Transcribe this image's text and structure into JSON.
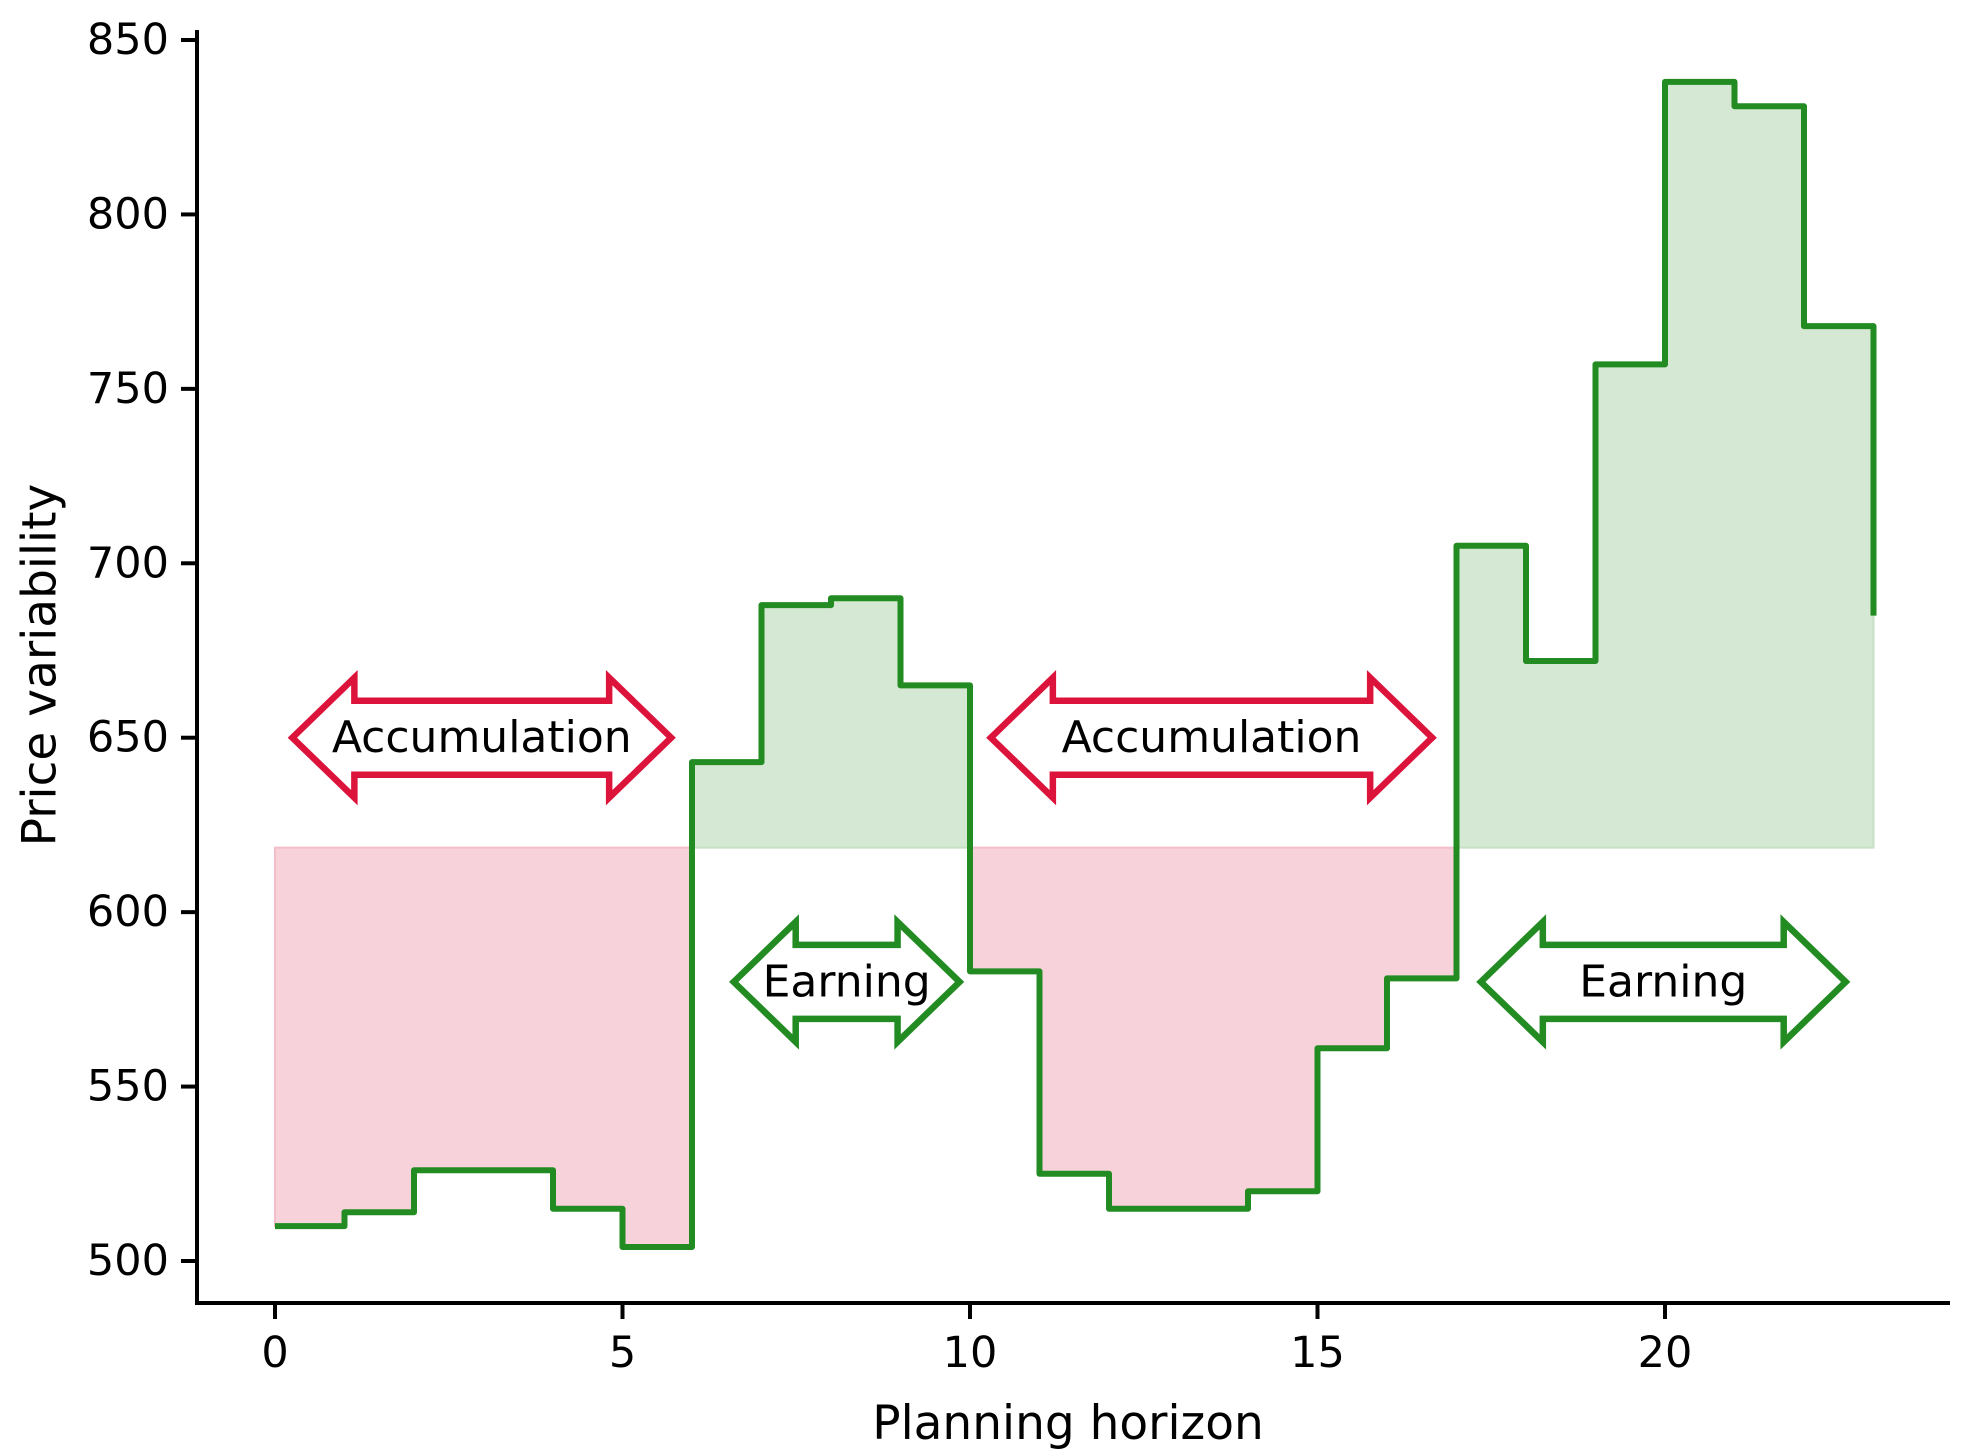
{
  "chart_data": {
    "type": "step",
    "step_mode": "post",
    "title": "",
    "xlabel": "Planning horizon",
    "ylabel": "Price variability",
    "x": [
      0,
      1,
      2,
      3,
      4,
      5,
      6,
      7,
      8,
      9,
      10,
      11,
      12,
      13,
      14,
      15,
      16,
      17,
      18,
      19,
      20,
      21,
      22,
      23
    ],
    "segment_values": [
      510,
      514,
      526,
      526,
      515,
      504,
      643,
      688,
      690,
      665,
      583,
      525,
      515,
      515,
      520,
      561,
      581,
      705,
      672,
      757,
      838,
      831,
      768
    ],
    "final_value": 685,
    "threshold": 618.5,
    "xticks": [
      0,
      5,
      10,
      15,
      20
    ],
    "yticks": [
      500,
      550,
      600,
      650,
      700,
      750,
      800,
      850
    ],
    "xlim": [
      -1.1,
      24.1
    ],
    "ylim": [
      487,
      852
    ],
    "grid": false,
    "legend": null,
    "regions": [
      {
        "kind": "accumulation",
        "x0": 0,
        "x1": 6
      },
      {
        "kind": "earning",
        "x0": 6,
        "x1": 10
      },
      {
        "kind": "accumulation",
        "x0": 10,
        "x1": 17
      },
      {
        "kind": "earning",
        "x0": 17,
        "x1": 23
      }
    ],
    "annotations": [
      {
        "label": "Accumulation",
        "x0": 0.25,
        "x1": 5.7,
        "y": 650,
        "style": "accumulation"
      },
      {
        "label": "Earning",
        "x0": 6.6,
        "x1": 9.85,
        "y": 580,
        "style": "earning"
      },
      {
        "label": "Accumulation",
        "x0": 10.3,
        "x1": 16.65,
        "y": 650,
        "style": "accumulation"
      },
      {
        "label": "Earning",
        "x0": 17.35,
        "x1": 22.6,
        "y": 580,
        "style": "earning"
      }
    ],
    "colors": {
      "line": "#228B22",
      "accumulation_arrow": "#DC143C",
      "earning_arrow": "#228B22",
      "accumulation_fill": "#f8d2da",
      "accumulation_fill_edge": "#f3bdca",
      "earning_fill": "#d5e8d3",
      "earning_fill_edge": "#c6e0c4",
      "axis": "#000000",
      "text": "#000000"
    }
  }
}
